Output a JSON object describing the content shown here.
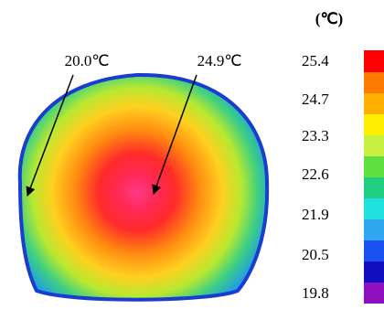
{
  "annotations": [
    {
      "label": "20.0℃"
    },
    {
      "label": "24.9℃"
    }
  ],
  "scale": {
    "unit": "(℃)",
    "labels": [
      "25.4",
      "24.7",
      "23.3",
      "22.6",
      "21.9",
      "20.5",
      "19.8"
    ]
  }
}
